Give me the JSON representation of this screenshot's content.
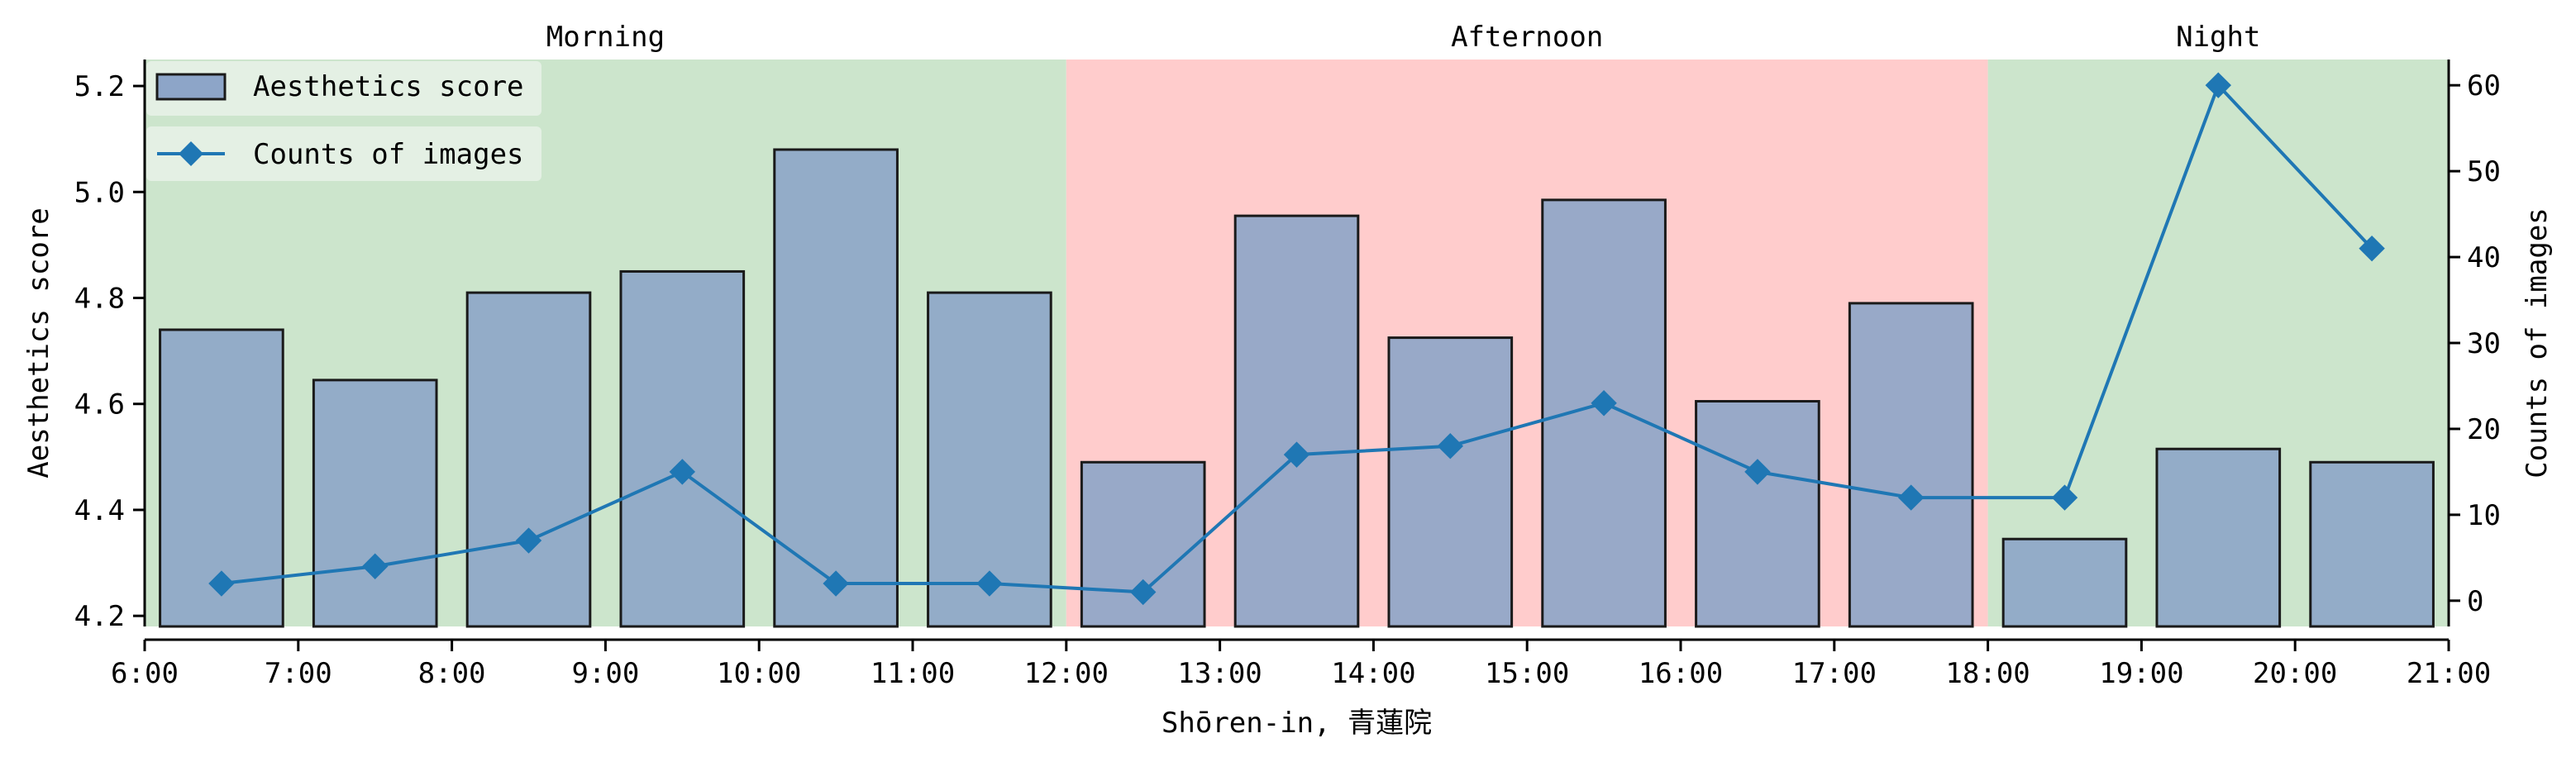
{
  "chart_data": {
    "type": "bar+line",
    "title": "",
    "xlabel": "Shōren-in, 青蓮院",
    "ylabel_left": "Aesthetics score",
    "ylabel_right": "Counts of images",
    "xlim": [
      6,
      21
    ],
    "ylim_left": [
      4.18,
      5.25
    ],
    "ylim_right": [
      -3,
      63
    ],
    "x_ticks": [
      6,
      7,
      8,
      9,
      10,
      11,
      12,
      13,
      14,
      15,
      16,
      17,
      18,
      19,
      20,
      21
    ],
    "x_tick_labels": [
      "6:00",
      "7:00",
      "8:00",
      "9:00",
      "10:00",
      "11:00",
      "12:00",
      "13:00",
      "14:00",
      "15:00",
      "16:00",
      "17:00",
      "18:00",
      "19:00",
      "20:00",
      "21:00"
    ],
    "y_left_ticks": [
      "4.2",
      "4.4",
      "4.6",
      "4.8",
      "5.0",
      "5.2"
    ],
    "y_right_ticks": [
      "0",
      "10",
      "20",
      "30",
      "40",
      "50",
      "60"
    ],
    "periods": [
      {
        "name": "Morning",
        "start": 6,
        "end": 12,
        "color": "#cce5cc"
      },
      {
        "name": "Afternoon",
        "start": 12,
        "end": 18,
        "color": "#ffcccc"
      },
      {
        "name": "Night",
        "start": 18,
        "end": 21,
        "color": "#cce5cc"
      }
    ],
    "x": [
      6.5,
      7.5,
      8.5,
      9.5,
      10.5,
      11.5,
      12.5,
      13.5,
      14.5,
      15.5,
      16.5,
      17.5,
      18.5,
      19.5,
      20.5
    ],
    "series": [
      {
        "name": "Aesthetics score",
        "type": "bar",
        "axis": "left",
        "color": "#8da5c8",
        "values": [
          4.74,
          4.645,
          4.81,
          4.85,
          5.08,
          4.81,
          4.49,
          4.955,
          4.725,
          4.985,
          4.605,
          4.79,
          4.345,
          4.515,
          4.49
        ]
      },
      {
        "name": "Counts of images",
        "type": "line",
        "axis": "right",
        "color": "#1f77b4",
        "marker": "diamond",
        "values": [
          2,
          4,
          7,
          15,
          2,
          2,
          1,
          17,
          18,
          23,
          15,
          12,
          12,
          60,
          41
        ]
      }
    ],
    "grid": false,
    "legend_position": "top-left"
  }
}
